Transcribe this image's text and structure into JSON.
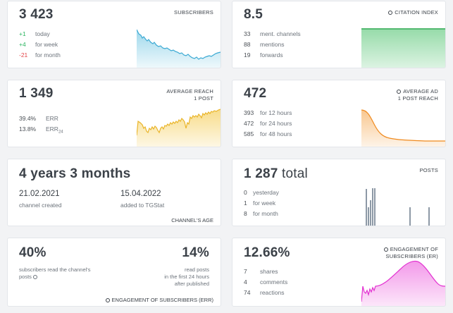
{
  "subscribers": {
    "value": "3 423",
    "label": "SUBSCRIBERS",
    "rows": [
      {
        "value": "+1",
        "label": "today"
      },
      {
        "value": "+4",
        "label": "for week"
      },
      {
        "value": "-21",
        "label": "for month"
      }
    ]
  },
  "citation": {
    "value": "8.5",
    "label": "CITATION INDEX",
    "rows": [
      {
        "value": "33",
        "label": "ment. channels"
      },
      {
        "value": "88",
        "label": "mentions"
      },
      {
        "value": "19",
        "label": "forwards"
      }
    ]
  },
  "reach": {
    "value": "1 349",
    "label_line1": "AVERAGE REACH",
    "label_line2": "1 POST",
    "rows": [
      {
        "value": "39.4%",
        "label": "ERR"
      },
      {
        "value": "13.8%",
        "label": "ERR",
        "sub": "24"
      }
    ]
  },
  "ad_reach": {
    "value": "472",
    "label_line1": "AVERAGE AD",
    "label_line2": "1 POST REACH",
    "rows": [
      {
        "value": "393",
        "label": "for 12 hours"
      },
      {
        "value": "472",
        "label": "for 24 hours"
      },
      {
        "value": "585",
        "label": "for 48 hours"
      }
    ]
  },
  "age": {
    "value": "4 years 3 months",
    "created_date": "21.02.2021",
    "created_label": "channel created",
    "added_date": "15.04.2022",
    "added_label": "added to TGStat",
    "footer": "CHANNEL'S AGE"
  },
  "posts": {
    "value": "1 287",
    "total": "total",
    "label": "POSTS",
    "rows": [
      {
        "value": "0",
        "label": "yesterday"
      },
      {
        "value": "1",
        "label": "for week"
      },
      {
        "value": "8",
        "label": "for month"
      }
    ]
  },
  "err_card": {
    "left_value": "40%",
    "left_text": "subscribers read the channel's posts",
    "right_value": "14%",
    "right_text_1": "read posts",
    "right_text_2": "in the first 24 hours",
    "right_text_3": "after published",
    "footer": "ENGAGEMENT OF SUBSCRIBERS (ERR)"
  },
  "er_card": {
    "value": "12.66%",
    "label_line1": "ENGAGEMENT OF",
    "label_line2": "SUBSCRIBERS (ER)",
    "rows": [
      {
        "value": "7",
        "label": "shares"
      },
      {
        "value": "4",
        "label": "comments"
      },
      {
        "value": "74",
        "label": "reactions"
      }
    ]
  },
  "colors": {
    "positive": "#2cb560",
    "negative": "#e4464a",
    "subscribers_chart": "#4fb8dc",
    "citation_chart": "#5cc779",
    "reach_chart": "#f3c53c",
    "ad_chart": "#f39a35",
    "posts_bars": "#8d99a6",
    "er_chart": "#e945d8"
  }
}
